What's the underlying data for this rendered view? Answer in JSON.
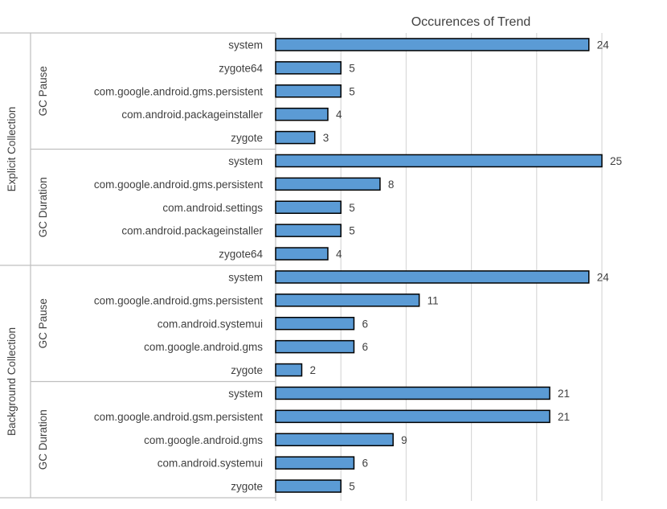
{
  "chart_data": {
    "type": "bar",
    "orientation": "horizontal",
    "title": "Occurences of Trend",
    "xlabel": "",
    "ylabel": "",
    "xlim": [
      0,
      25
    ],
    "grid": true,
    "bar_color": "#5b9bd5",
    "bar_edge_color": "#000000",
    "groups": [
      {
        "label": "Explicit Collection",
        "subgroups": [
          {
            "label": "GC Pause",
            "categories": [
              "system",
              "zygote64",
              "com.google.android.gms.persistent",
              "com.android.packageinstaller",
              "zygote"
            ],
            "values": [
              24,
              5,
              5,
              4,
              3
            ]
          },
          {
            "label": "GC Duration",
            "categories": [
              "system",
              "com.google.android.gms.persistent",
              "com.android.settings",
              "com.android.packageinstaller",
              "zygote64"
            ],
            "values": [
              25,
              8,
              5,
              5,
              4
            ]
          }
        ]
      },
      {
        "label": "Background Collection",
        "subgroups": [
          {
            "label": "GC Pause",
            "categories": [
              "system",
              "com.google.android.gms.persistent",
              "com.android.systemui",
              "com.google.android.gms",
              "zygote"
            ],
            "values": [
              24,
              11,
              6,
              6,
              2
            ]
          },
          {
            "label": "GC Duration",
            "categories": [
              "system",
              "com.google.android.gsm.persistent",
              "com.google.android.gms",
              "com.android.systemui",
              "zygote"
            ],
            "values": [
              21,
              21,
              9,
              6,
              5
            ]
          }
        ]
      }
    ]
  }
}
